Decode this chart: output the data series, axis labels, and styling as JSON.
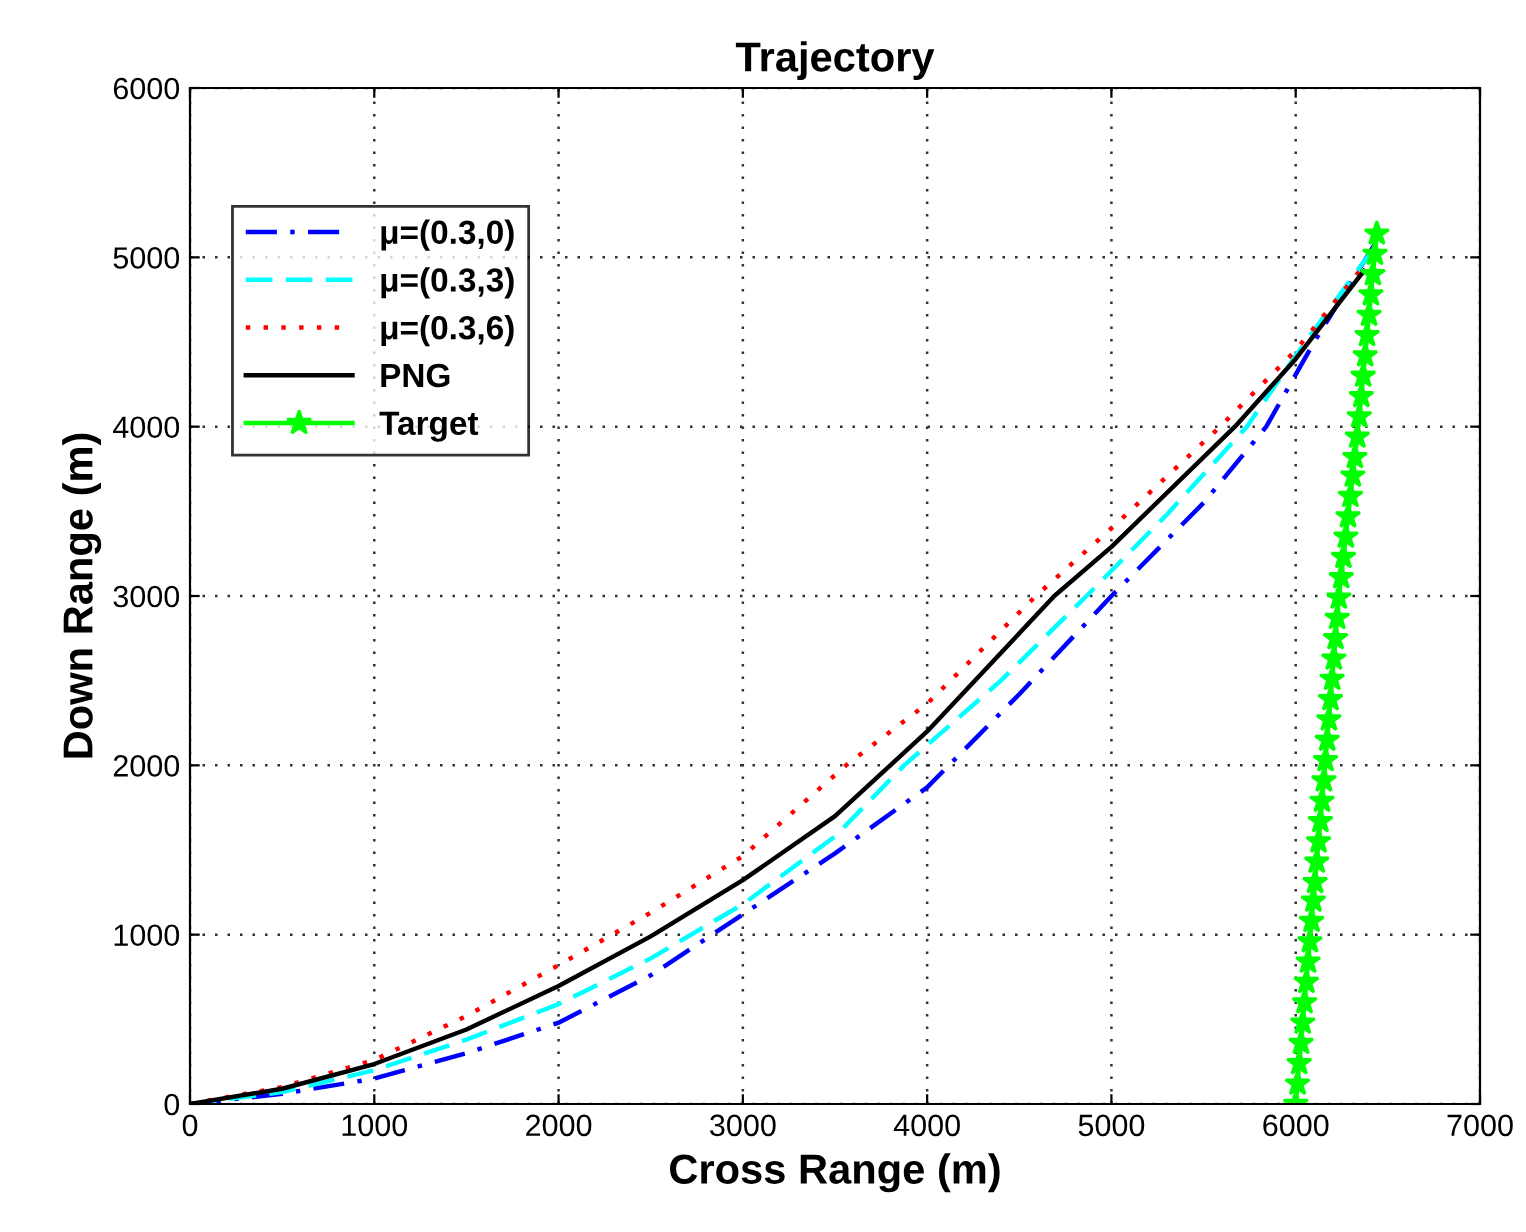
{
  "chart_data": {
    "type": "line",
    "title": "Trajectory",
    "xlabel": "Cross Range (m)",
    "ylabel": "Down Range (m)",
    "xlim": [
      0,
      7000
    ],
    "xticks": [
      0,
      1000,
      2000,
      3000,
      4000,
      5000,
      6000,
      7000
    ],
    "ylim": [
      0,
      6000
    ],
    "yticks": [
      0,
      1000,
      2000,
      3000,
      4000,
      5000,
      6000
    ],
    "grid": true,
    "legend": "top left",
    "series": [
      {
        "name": "μ=(0.3,0)",
        "color": "#0000ff",
        "line_style": "dashdot",
        "marker": "none",
        "x": [
          0,
          500,
          1000,
          1500,
          2000,
          2500,
          3000,
          3500,
          4000,
          4500,
          5000,
          5500,
          5840,
          6100,
          6430
        ],
        "values": [
          0,
          60,
          150,
          300,
          480,
          760,
          1120,
          1480,
          1870,
          2420,
          3000,
          3550,
          4000,
          4500,
          5080
        ]
      },
      {
        "name": "μ=(0.3,3)",
        "color": "#00ffff",
        "line_style": "dashed",
        "marker": "none",
        "x": [
          0,
          500,
          1000,
          1500,
          2000,
          2500,
          3000,
          3500,
          3875,
          4400,
          4865,
          5300,
          5735,
          6000,
          6400
        ],
        "values": [
          0,
          70,
          200,
          380,
          590,
          860,
          1180,
          1580,
          2000,
          2500,
          3000,
          3480,
          4000,
          4420,
          5020
        ]
      },
      {
        "name": "μ=(0.3,6)",
        "color": "#ff0000",
        "line_style": "dotted",
        "marker": "none",
        "x": [
          0,
          500,
          1000,
          1500,
          2000,
          2500,
          3000,
          3560,
          4000,
          4590,
          5000,
          5590,
          6000,
          6370
        ],
        "values": [
          0,
          100,
          260,
          520,
          820,
          1130,
          1464,
          2000,
          2364,
          3000,
          3400,
          4000,
          4450,
          4950
        ]
      },
      {
        "name": "PNG",
        "color": "#000000",
        "line_style": "solid",
        "marker": "none",
        "x": [
          0,
          500,
          1000,
          1500,
          2000,
          2500,
          3000,
          3500,
          4000,
          4690,
          5000,
          5670,
          6000,
          6370
        ],
        "values": [
          0,
          90,
          236,
          440,
          697,
          990,
          1322,
          1700,
          2200,
          3000,
          3290,
          4000,
          4400,
          4920
        ]
      },
      {
        "name": "Target",
        "color": "#00ff00",
        "line_style": "solid",
        "marker": "star",
        "x": [
          6000,
          6010,
          6019,
          6029,
          6038,
          6048,
          6058,
          6067,
          6077,
          6086,
          6096,
          6105,
          6114,
          6124,
          6134,
          6143,
          6153,
          6162,
          6171,
          6180,
          6189,
          6198,
          6207,
          6216,
          6225,
          6234,
          6247,
          6259,
          6272,
          6284,
          6297,
          6310,
          6321,
          6334,
          6345,
          6356,
          6366,
          6377,
          6387,
          6398,
          6408,
          6419,
          6430,
          6440
        ],
        "values": [
          0,
          120,
          240,
          360,
          480,
          600,
          720,
          840,
          960,
          1080,
          1200,
          1310,
          1430,
          1550,
          1670,
          1790,
          1910,
          2030,
          2150,
          2270,
          2390,
          2510,
          2630,
          2750,
          2870,
          2990,
          3110,
          3230,
          3350,
          3470,
          3590,
          3710,
          3820,
          3940,
          4060,
          4180,
          4300,
          4420,
          4540,
          4660,
          4780,
          4900,
          5020,
          5140
        ]
      }
    ]
  }
}
